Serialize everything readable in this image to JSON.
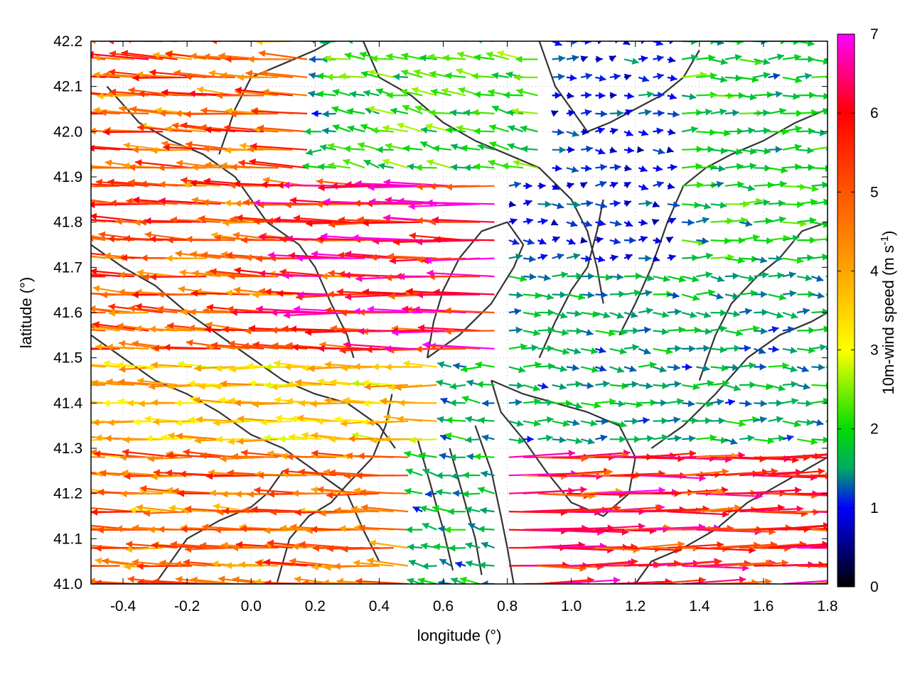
{
  "chart_data": {
    "type": "vector-field",
    "xlabel": "longitude (°)",
    "ylabel": "latitude (°)",
    "xlim": [
      -0.5,
      1.8
    ],
    "ylim": [
      41.0,
      42.2
    ],
    "xticks": [
      -0.4,
      -0.2,
      0.0,
      0.2,
      0.4,
      0.6,
      0.8,
      1.0,
      1.2,
      1.4,
      1.6,
      1.8
    ],
    "xtick_labels": [
      "-0.4",
      "-0.2",
      "0.0",
      "0.2",
      "0.4",
      "0.6",
      "0.8",
      "1.0",
      "1.2",
      "1.4",
      "1.6",
      "1.8"
    ],
    "yticks": [
      41.0,
      41.1,
      41.2,
      41.3,
      41.4,
      41.5,
      41.6,
      41.7,
      41.8,
      41.9,
      42.0,
      42.1,
      42.2
    ],
    "ytick_labels": [
      "41.0",
      "41.1",
      "41.2",
      "41.3",
      "41.4",
      "41.5",
      "41.6",
      "41.7",
      "41.8",
      "41.9",
      "42.0",
      "42.1",
      "42.2"
    ],
    "grid": true,
    "colorbar": {
      "label_main": "10m-wind speed (m s",
      "label_sup": "-1",
      "label_end": ")",
      "range": [
        0,
        7
      ],
      "ticks": [
        0,
        1,
        2,
        3,
        4,
        5,
        6,
        7
      ],
      "tick_labels": [
        "0",
        "1",
        "2",
        "3",
        "4",
        "5",
        "6",
        "7"
      ],
      "stops": [
        {
          "value": 0,
          "color": "#000000"
        },
        {
          "value": 1,
          "color": "#0000ff"
        },
        {
          "value": 1.5,
          "color": "#00aa66"
        },
        {
          "value": 2,
          "color": "#00dd00"
        },
        {
          "value": 3,
          "color": "#ffff00"
        },
        {
          "value": 4,
          "color": "#ffa500"
        },
        {
          "value": 5,
          "color": "#ff5500"
        },
        {
          "value": 6,
          "color": "#ff0000"
        },
        {
          "value": 7,
          "color": "#ff00ff"
        }
      ]
    },
    "wind_regions": [
      {
        "lon": [
          -0.5,
          0.2
        ],
        "lat": [
          41.5,
          42.2
        ],
        "u": -4.8,
        "v": 0.3,
        "speed_note": "strong westward flow, NW sector"
      },
      {
        "lon": [
          0.2,
          0.8
        ],
        "lat": [
          41.5,
          41.9
        ],
        "u": -5.8,
        "v": 0.1,
        "speed_note": "very strong westward flow"
      },
      {
        "lon": [
          -0.5,
          0.6
        ],
        "lat": [
          41.3,
          41.5
        ],
        "u": -3.5,
        "v": 0.1,
        "speed_note": "moderate westward"
      },
      {
        "lon": [
          -0.5,
          0.5
        ],
        "lat": [
          41.0,
          41.3
        ],
        "u": -4.5,
        "v": 0.2,
        "speed_note": "strong westward, SW sector"
      },
      {
        "lon": [
          0.3,
          0.9
        ],
        "lat": [
          41.9,
          42.2
        ],
        "u": -2.0,
        "v": 0.4,
        "speed_note": "weak to moderate"
      },
      {
        "lon": [
          0.8,
          1.3
        ],
        "lat": [
          41.7,
          42.2
        ],
        "u": 1.0,
        "v": 0.0,
        "speed_note": "weak eastward"
      },
      {
        "lon": [
          1.3,
          1.8
        ],
        "lat": [
          41.7,
          42.2
        ],
        "u": 1.8,
        "v": 0.0,
        "speed_note": "light eastward"
      },
      {
        "lon": [
          0.8,
          1.8
        ],
        "lat": [
          41.3,
          41.7
        ],
        "u": 1.5,
        "v": -0.1,
        "speed_note": "light eastward"
      },
      {
        "lon": [
          0.8,
          1.8
        ],
        "lat": [
          41.0,
          41.3
        ],
        "u": 5.5,
        "v": 0.1,
        "speed_note": "strong eastward, SE sector"
      },
      {
        "lon": [
          0.5,
          0.8
        ],
        "lat": [
          41.0,
          41.4
        ],
        "u": -1.5,
        "v": 0.3,
        "speed_note": "mixed weak"
      }
    ],
    "contours": [
      [
        [
          -0.45,
          42.1
        ],
        [
          -0.35,
          42.02
        ],
        [
          -0.25,
          41.98
        ],
        [
          -0.15,
          41.95
        ],
        [
          -0.05,
          41.9
        ],
        [
          0.0,
          41.85
        ],
        [
          0.05,
          41.8
        ],
        [
          0.15,
          41.75
        ],
        [
          0.2,
          41.7
        ],
        [
          0.25,
          41.62
        ],
        [
          0.3,
          41.55
        ],
        [
          0.32,
          41.5
        ]
      ],
      [
        [
          -0.5,
          41.75
        ],
        [
          -0.4,
          41.7
        ],
        [
          -0.3,
          41.66
        ],
        [
          -0.2,
          41.6
        ],
        [
          -0.1,
          41.55
        ],
        [
          0.0,
          41.5
        ],
        [
          0.1,
          41.45
        ],
        [
          0.2,
          41.42
        ],
        [
          0.3,
          41.4
        ],
        [
          0.4,
          41.35
        ],
        [
          0.45,
          41.3
        ]
      ],
      [
        [
          -0.5,
          41.55
        ],
        [
          -0.4,
          41.5
        ],
        [
          -0.3,
          41.45
        ],
        [
          -0.2,
          41.42
        ],
        [
          -0.1,
          41.38
        ],
        [
          0.0,
          41.33
        ],
        [
          0.1,
          41.3
        ],
        [
          0.2,
          41.25
        ],
        [
          0.3,
          41.2
        ],
        [
          0.35,
          41.12
        ],
        [
          0.4,
          41.05
        ]
      ],
      [
        [
          0.35,
          42.2
        ],
        [
          0.4,
          42.12
        ],
        [
          0.5,
          42.08
        ],
        [
          0.6,
          42.02
        ],
        [
          0.7,
          41.98
        ],
        [
          0.8,
          41.95
        ],
        [
          0.9,
          41.92
        ],
        [
          1.0,
          41.85
        ],
        [
          1.05,
          41.78
        ],
        [
          1.08,
          41.7
        ],
        [
          1.1,
          41.62
        ]
      ],
      [
        [
          0.55,
          41.5
        ],
        [
          0.65,
          41.55
        ],
        [
          0.75,
          41.62
        ],
        [
          0.82,
          41.7
        ],
        [
          0.85,
          41.75
        ],
        [
          0.8,
          41.8
        ],
        [
          0.72,
          41.78
        ],
        [
          0.65,
          41.72
        ],
        [
          0.6,
          41.65
        ],
        [
          0.57,
          41.58
        ],
        [
          0.55,
          41.5
        ]
      ],
      [
        [
          0.75,
          41.45
        ],
        [
          0.85,
          41.42
        ],
        [
          0.95,
          41.4
        ],
        [
          1.05,
          41.38
        ],
        [
          1.15,
          41.35
        ],
        [
          1.2,
          41.28
        ],
        [
          1.18,
          41.2
        ],
        [
          1.1,
          41.15
        ],
        [
          1.0,
          41.18
        ],
        [
          0.92,
          41.25
        ],
        [
          0.85,
          41.32
        ],
        [
          0.78,
          41.38
        ],
        [
          0.75,
          41.45
        ]
      ],
      [
        [
          0.7,
          41.35
        ],
        [
          0.75,
          41.25
        ],
        [
          0.78,
          41.15
        ],
        [
          0.8,
          41.08
        ],
        [
          0.82,
          41.0
        ]
      ],
      [
        [
          0.62,
          41.3
        ],
        [
          0.66,
          41.2
        ],
        [
          0.7,
          41.1
        ],
        [
          0.72,
          41.02
        ]
      ],
      [
        [
          0.52,
          41.32
        ],
        [
          0.56,
          41.22
        ],
        [
          0.6,
          41.12
        ],
        [
          0.63,
          41.03
        ]
      ],
      [
        [
          1.2,
          41.0
        ],
        [
          1.25,
          41.05
        ],
        [
          1.35,
          41.08
        ],
        [
          1.45,
          41.12
        ],
        [
          1.55,
          41.18
        ],
        [
          1.65,
          41.22
        ],
        [
          1.75,
          41.26
        ],
        [
          1.8,
          41.28
        ]
      ],
      [
        [
          1.25,
          41.3
        ],
        [
          1.35,
          41.35
        ],
        [
          1.45,
          41.42
        ],
        [
          1.55,
          41.5
        ],
        [
          1.65,
          41.55
        ],
        [
          1.75,
          41.58
        ],
        [
          1.8,
          41.6
        ]
      ],
      [
        [
          1.15,
          41.55
        ],
        [
          1.2,
          41.62
        ],
        [
          1.25,
          41.7
        ],
        [
          1.3,
          41.8
        ],
        [
          1.35,
          41.88
        ],
        [
          1.42,
          41.92
        ],
        [
          1.5,
          41.95
        ],
        [
          1.6,
          41.98
        ],
        [
          1.7,
          42.02
        ],
        [
          1.8,
          42.05
        ]
      ],
      [
        [
          0.9,
          42.2
        ],
        [
          0.95,
          42.1
        ],
        [
          1.0,
          42.05
        ],
        [
          1.05,
          42.0
        ],
        [
          1.12,
          42.02
        ],
        [
          1.2,
          42.05
        ],
        [
          1.28,
          42.08
        ],
        [
          1.35,
          42.12
        ],
        [
          1.4,
          42.18
        ]
      ],
      [
        [
          -0.1,
          41.95
        ],
        [
          -0.05,
          42.05
        ],
        [
          0.0,
          42.12
        ],
        [
          0.1,
          42.15
        ],
        [
          0.2,
          42.18
        ],
        [
          0.25,
          42.2
        ]
      ],
      [
        [
          0.08,
          41.0
        ],
        [
          0.12,
          41.1
        ],
        [
          0.18,
          41.15
        ],
        [
          0.25,
          41.18
        ],
        [
          0.3,
          41.22
        ],
        [
          0.38,
          41.28
        ],
        [
          0.42,
          41.35
        ],
        [
          0.44,
          41.42
        ]
      ],
      [
        [
          -0.3,
          41.0
        ],
        [
          -0.25,
          41.05
        ],
        [
          -0.2,
          41.1
        ],
        [
          -0.1,
          41.14
        ],
        [
          0.0,
          41.17
        ],
        [
          0.05,
          41.2
        ],
        [
          0.1,
          41.25
        ]
      ],
      [
        [
          1.4,
          41.45
        ],
        [
          1.45,
          41.55
        ],
        [
          1.5,
          41.62
        ],
        [
          1.58,
          41.68
        ],
        [
          1.65,
          41.72
        ],
        [
          1.72,
          41.78
        ],
        [
          1.8,
          41.8
        ]
      ],
      [
        [
          0.9,
          41.5
        ],
        [
          0.95,
          41.58
        ],
        [
          1.0,
          41.65
        ],
        [
          1.05,
          41.7
        ],
        [
          1.08,
          41.78
        ],
        [
          1.1,
          41.85
        ]
      ]
    ]
  }
}
